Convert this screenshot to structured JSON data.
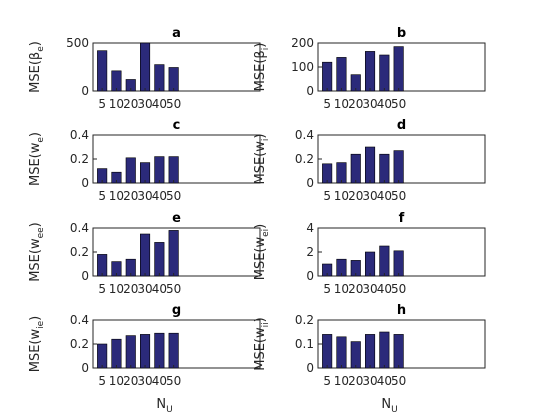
{
  "chart_data": [
    {
      "type": "bar",
      "title": "a",
      "ylabel": {
        "main": "MSE(β",
        "sub": "e",
        "close": ")"
      },
      "categories": [
        "5",
        "10",
        "20",
        "30",
        "40",
        "50"
      ],
      "values": [
        420,
        210,
        120,
        500,
        275,
        245
      ],
      "ylim": [
        0,
        500
      ],
      "yticks": [
        "0",
        "500"
      ],
      "bar_color": "#2b2a7a"
    },
    {
      "type": "bar",
      "title": "b",
      "ylabel": {
        "main": "MSE(β",
        "sub": "i",
        "close": ")"
      },
      "categories": [
        "5",
        "10",
        "20",
        "30",
        "40",
        "50"
      ],
      "values": [
        120,
        140,
        68,
        165,
        150,
        185
      ],
      "ylim": [
        0,
        200
      ],
      "yticks": [
        "0",
        "100",
        "200"
      ],
      "bar_color": "#2b2a7a"
    },
    {
      "type": "bar",
      "title": "c",
      "ylabel": {
        "main": "MSE(w",
        "sub": "e",
        "close": ")"
      },
      "categories": [
        "5",
        "10",
        "20",
        "30",
        "40",
        "50"
      ],
      "values": [
        0.12,
        0.09,
        0.21,
        0.17,
        0.22,
        0.22
      ],
      "ylim": [
        0,
        0.4
      ],
      "yticks": [
        "0",
        "0.2",
        "0.4"
      ],
      "bar_color": "#2b2a7a"
    },
    {
      "type": "bar",
      "title": "d",
      "ylabel": {
        "main": "MSE(w",
        "sub": "i",
        "close": ")"
      },
      "categories": [
        "5",
        "10",
        "20",
        "30",
        "40",
        "50"
      ],
      "values": [
        0.16,
        0.17,
        0.24,
        0.3,
        0.24,
        0.27
      ],
      "ylim": [
        0,
        0.4
      ],
      "yticks": [
        "0",
        "0.2",
        "0.4"
      ],
      "bar_color": "#2b2a7a"
    },
    {
      "type": "bar",
      "title": "e",
      "ylabel": {
        "main": "MSE(w",
        "sub": "ee",
        "close": ")"
      },
      "categories": [
        "5",
        "10",
        "20",
        "30",
        "40",
        "50"
      ],
      "values": [
        0.18,
        0.12,
        0.14,
        0.35,
        0.28,
        0.38
      ],
      "ylim": [
        0,
        0.4
      ],
      "yticks": [
        "0",
        "0.2",
        "0.4"
      ],
      "bar_color": "#2b2a7a"
    },
    {
      "type": "bar",
      "title": "f",
      "ylabel": {
        "main": "MSE(w",
        "sub": "ei",
        "close": ")"
      },
      "categories": [
        "5",
        "10",
        "20",
        "30",
        "40",
        "50"
      ],
      "values": [
        1.0,
        1.4,
        1.3,
        2.0,
        2.5,
        2.1
      ],
      "ylim": [
        0,
        4
      ],
      "yticks": [
        "0",
        "2",
        "4"
      ],
      "bar_color": "#2b2a7a"
    },
    {
      "type": "bar",
      "title": "g",
      "ylabel": {
        "main": "MSE(w",
        "sub": "ie",
        "close": ")"
      },
      "categories": [
        "5",
        "10",
        "20",
        "30",
        "40",
        "50"
      ],
      "values": [
        0.2,
        0.24,
        0.27,
        0.28,
        0.29,
        0.29
      ],
      "ylim": [
        0,
        0.4
      ],
      "yticks": [
        "0",
        "0.2",
        "0.4"
      ],
      "bar_color": "#2b2a7a"
    },
    {
      "type": "bar",
      "title": "h",
      "ylabel": {
        "main": "MSE(w",
        "sub": "ii",
        "close": ")"
      },
      "categories": [
        "5",
        "10",
        "20",
        "30",
        "40",
        "50"
      ],
      "values": [
        0.14,
        0.13,
        0.11,
        0.14,
        0.15,
        0.14
      ],
      "ylim": [
        0,
        0.2
      ],
      "yticks": [
        "0",
        "0.1",
        "0.2"
      ],
      "bar_color": "#2b2a7a"
    }
  ],
  "xlabels": [
    {
      "main": "N",
      "sub": "U"
    },
    {
      "main": "N",
      "sub": "U"
    }
  ]
}
